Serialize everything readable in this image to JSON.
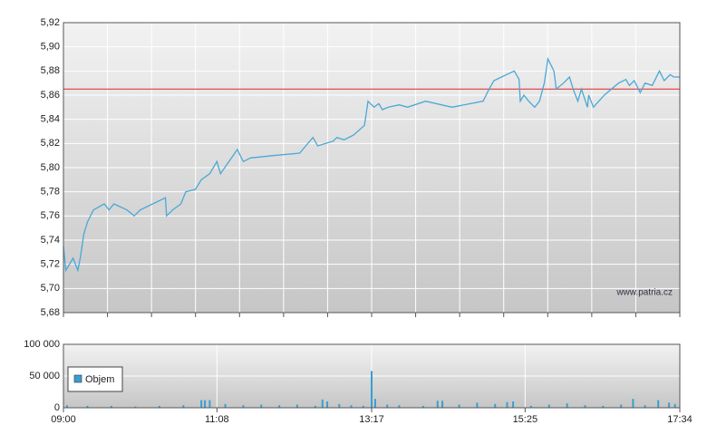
{
  "watermark": "www.patria.cz",
  "chart_data": [
    {
      "type": "line",
      "xlim": [
        "09:00",
        "17:34"
      ],
      "ylim": [
        5.68,
        5.92
      ],
      "yticks": [
        {
          "value": 5.68,
          "label": "5,68"
        },
        {
          "value": 5.7,
          "label": "5,70"
        },
        {
          "value": 5.72,
          "label": "5,72"
        },
        {
          "value": 5.74,
          "label": "5,74"
        },
        {
          "value": 5.76,
          "label": "5,76"
        },
        {
          "value": 5.78,
          "label": "5,78"
        },
        {
          "value": 5.8,
          "label": "5,80"
        },
        {
          "value": 5.82,
          "label": "5,82"
        },
        {
          "value": 5.84,
          "label": "5,84"
        },
        {
          "value": 5.86,
          "label": "5,86"
        },
        {
          "value": 5.88,
          "label": "5,88"
        },
        {
          "value": 5.9,
          "label": "5,90"
        },
        {
          "value": 5.92,
          "label": "5,92"
        }
      ],
      "grid": true,
      "reference_line": {
        "value": 5.865,
        "color": "#e03a3a"
      },
      "x": [
        "09:00",
        "09:02",
        "09:08",
        "09:12",
        "09:14",
        "09:17",
        "09:20",
        "09:25",
        "09:34",
        "09:38",
        "09:42",
        "09:53",
        "09:59",
        "10:04",
        "10:25",
        "10:26",
        "10:31",
        "10:38",
        "10:42",
        "10:50",
        "10:55",
        "11:02",
        "11:08",
        "11:11",
        "11:25",
        "11:30",
        "11:36",
        "11:55",
        "12:17",
        "12:28",
        "12:32",
        "12:45",
        "12:48",
        "12:54",
        "13:02",
        "13:11",
        "13:14",
        "13:19",
        "13:23",
        "13:26",
        "13:31",
        "13:40",
        "13:47",
        "14:02",
        "14:24",
        "14:50",
        "14:55",
        "14:59",
        "15:16",
        "15:20",
        "15:21",
        "15:24",
        "15:28",
        "15:33",
        "15:37",
        "15:41",
        "15:44",
        "15:49",
        "15:51",
        "15:57",
        "16:02",
        "16:05",
        "16:09",
        "16:12",
        "16:17",
        "16:18",
        "16:22",
        "16:31",
        "16:37",
        "16:43",
        "16:49",
        "16:52",
        "16:56",
        "17:01",
        "17:05",
        "17:11",
        "17:17",
        "17:21",
        "17:26",
        "17:29",
        "17:34"
      ],
      "series": [
        {
          "color": "#4aa8d6",
          "values": [
            5.735,
            5.715,
            5.725,
            5.715,
            5.725,
            5.745,
            5.755,
            5.765,
            5.77,
            5.765,
            5.77,
            5.765,
            5.76,
            5.765,
            5.775,
            5.76,
            5.765,
            5.77,
            5.78,
            5.782,
            5.79,
            5.795,
            5.805,
            5.795,
            5.815,
            5.805,
            5.808,
            5.81,
            5.812,
            5.825,
            5.818,
            5.822,
            5.825,
            5.823,
            5.827,
            5.835,
            5.855,
            5.85,
            5.853,
            5.848,
            5.85,
            5.852,
            5.85,
            5.855,
            5.85,
            5.855,
            5.865,
            5.872,
            5.88,
            5.873,
            5.855,
            5.86,
            5.855,
            5.85,
            5.855,
            5.87,
            5.89,
            5.88,
            5.865,
            5.87,
            5.875,
            5.865,
            5.855,
            5.865,
            5.85,
            5.86,
            5.85,
            5.86,
            5.865,
            5.87,
            5.873,
            5.868,
            5.872,
            5.862,
            5.87,
            5.868,
            5.88,
            5.872,
            5.877,
            5.875,
            5.875
          ]
        }
      ]
    },
    {
      "type": "bar",
      "xlim": [
        "09:00",
        "17:34"
      ],
      "xticks": [
        "09:00",
        "11:08",
        "13:17",
        "15:25",
        "17:34"
      ],
      "ylim": [
        0,
        100000
      ],
      "yticks": [
        0,
        {
          "value": 50000,
          "label": "50 000"
        },
        {
          "value": 100000,
          "label": "100 000"
        }
      ],
      "grid": true,
      "legend": "upper left",
      "x": [
        "09:03",
        "09:20",
        "09:40",
        "10:00",
        "10:20",
        "10:40",
        "10:55",
        "10:58",
        "11:02",
        "11:15",
        "11:30",
        "11:45",
        "12:00",
        "12:15",
        "12:30",
        "12:36",
        "12:40",
        "12:50",
        "13:00",
        "13:10",
        "13:17",
        "13:20",
        "13:30",
        "13:40",
        "14:00",
        "14:12",
        "14:16",
        "14:30",
        "14:45",
        "15:00",
        "15:10",
        "15:15",
        "15:30",
        "15:45",
        "16:00",
        "16:15",
        "16:30",
        "16:45",
        "16:55",
        "17:05",
        "17:16",
        "17:25",
        "17:30"
      ],
      "series": [
        {
          "name": "Objem",
          "color": "#3a9fd0",
          "values": [
            4000,
            3000,
            3000,
            2000,
            3000,
            4000,
            12000,
            12000,
            12000,
            6000,
            4000,
            5000,
            4000,
            5000,
            3000,
            13000,
            10000,
            6000,
            4000,
            3000,
            58000,
            14000,
            5000,
            4000,
            3000,
            11000,
            11000,
            5000,
            8000,
            6000,
            9000,
            10000,
            3000,
            5000,
            7000,
            4000,
            3000,
            5000,
            14000,
            4000,
            12000,
            8000,
            6000
          ]
        }
      ]
    }
  ]
}
